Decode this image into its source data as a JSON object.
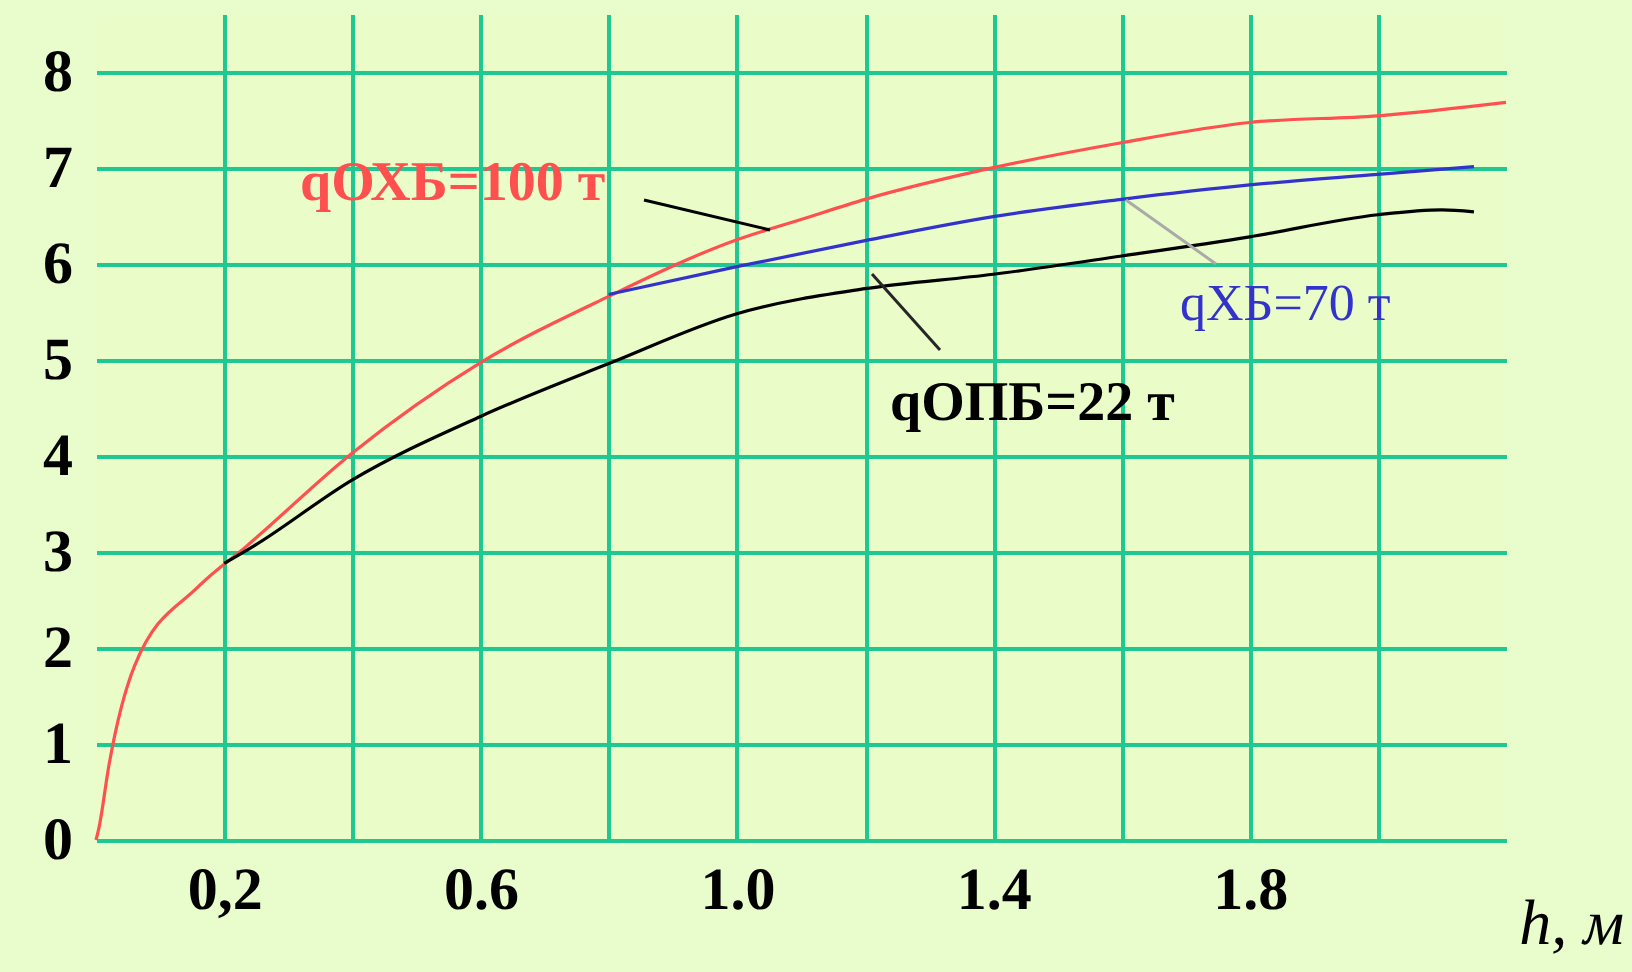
{
  "chart_data": {
    "type": "line",
    "xlabel": "h, м",
    "series": [
      {
        "name": "qОХБ=100 т",
        "color": "#ff5050",
        "x": [
          0,
          0.005,
          0.02,
          0.06,
          0.16,
          0.235,
          0.4,
          0.6,
          0.8,
          1.0,
          1.1,
          1.2,
          1.4,
          1.6,
          1.8,
          2.0,
          2.2
        ],
        "values": [
          0,
          0.14,
          0.77,
          1.81,
          2.64,
          3.06,
          4.03,
          4.97,
          5.66,
          6.25,
          6.46,
          6.67,
          7.0,
          7.26,
          7.47,
          7.54,
          7.68
        ]
      },
      {
        "name": "qХБ=70 т",
        "color": "#3333cc",
        "x": [
          0.8,
          1.0,
          1.2,
          1.4,
          1.6,
          1.8,
          2.0,
          2.15
        ],
        "values": [
          5.68,
          5.97,
          6.24,
          6.49,
          6.67,
          6.82,
          6.93,
          7.01
        ]
      },
      {
        "name": "qОПБ=22 т",
        "color": "#000000",
        "x": [
          0.2,
          0.246,
          0.4,
          0.6,
          0.8,
          1.0,
          1.2,
          1.4,
          1.6,
          1.8,
          2.0,
          2.1,
          2.15
        ],
        "values": [
          2.88,
          3.06,
          3.75,
          4.41,
          4.96,
          5.48,
          5.74,
          5.89,
          6.08,
          6.28,
          6.51,
          6.56,
          6.54
        ]
      }
    ],
    "xlim": [
      0,
      2.2
    ],
    "ylim": [
      0,
      8.6
    ],
    "xticks": [
      {
        "value": 0.2,
        "label": "0,2"
      },
      {
        "value": 0.4,
        "label": null
      },
      0.6,
      {
        "value": 0.8,
        "label": null
      },
      {
        "value": 1.0,
        "label": "1.0"
      },
      {
        "value": 1.2,
        "label": null
      },
      1.4,
      {
        "value": 1.6,
        "label": null
      },
      1.8,
      {
        "value": 2.0,
        "label": null
      }
    ],
    "yticks": [
      0,
      1,
      2,
      3,
      4,
      5,
      6,
      7,
      8
    ],
    "grid": true,
    "marker": "none",
    "line_style": "solid"
  }
}
